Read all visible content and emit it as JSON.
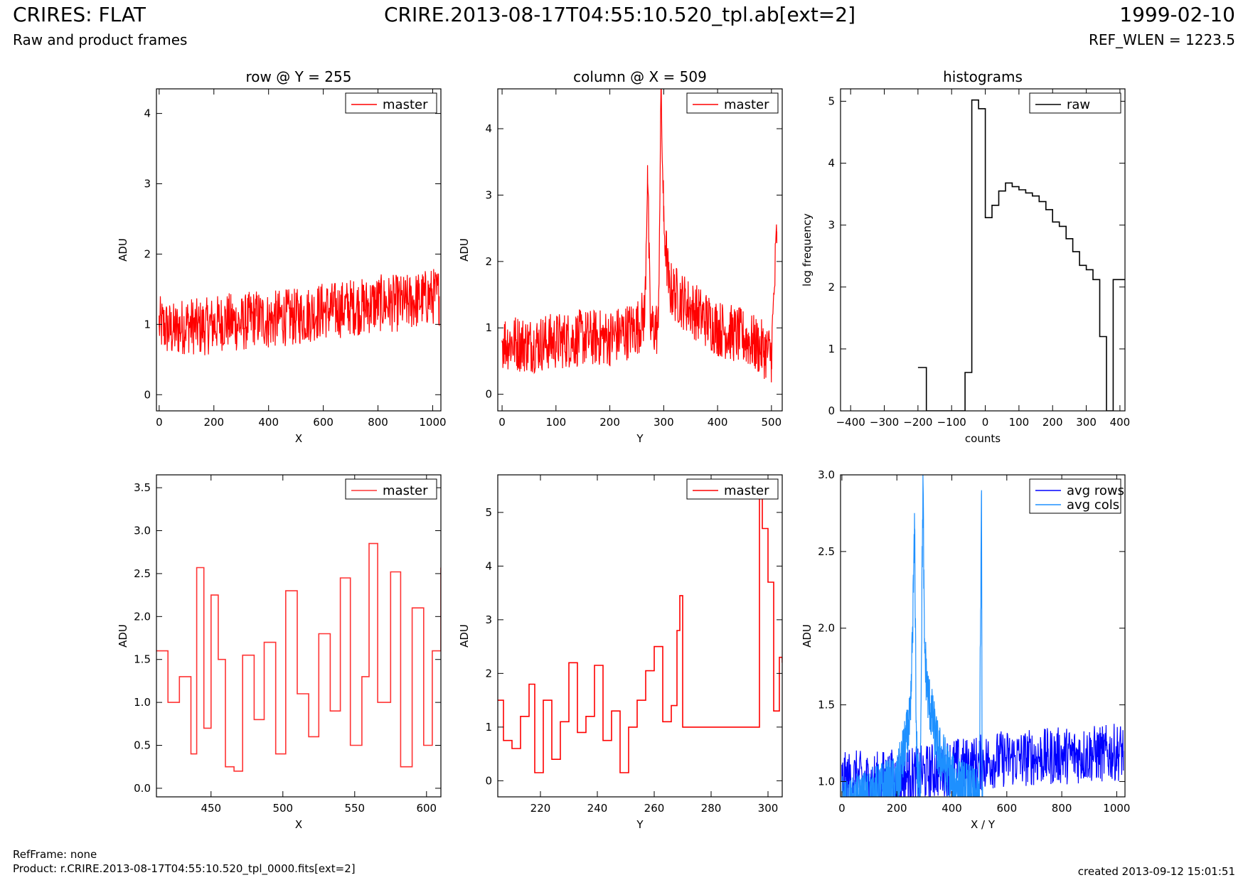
{
  "header": {
    "title": "CRIRES: FLAT",
    "subtitle": "Raw and product frames",
    "file": "CRIRE.2013-08-17T04:55:10.520_tpl.ab[ext=2]",
    "date": "1999-02-10",
    "ref_wlen": "REF_WLEN = 1223.5"
  },
  "footer": {
    "ref_frame": "RefFrame: none",
    "product": "Product: r.CRIRE.2013-08-17T04:55:10.520_tpl_0000.fits[ext=2]",
    "created": "created 2013-09-12 15:01:51"
  },
  "colors": {
    "master": "#ff0000",
    "raw": "#000000",
    "avg_rows": "#0000ff",
    "avg_cols": "#1e90ff"
  },
  "chart_data": [
    {
      "id": "p1",
      "type": "line",
      "title": "row @ Y = 255",
      "xlabel": "X",
      "ylabel": "ADU",
      "xlim": [
        -10,
        1030
      ],
      "ylim": [
        -0.23,
        4.35
      ],
      "xticks": [
        0,
        200,
        400,
        600,
        800,
        1000
      ],
      "yticks": [
        0,
        1,
        2,
        3,
        4
      ],
      "legend": "top-right",
      "series": [
        {
          "name": "master",
          "color": "#ff0000",
          "style": "line",
          "x": [
            0,
            50,
            100,
            150,
            200,
            250,
            300,
            350,
            400,
            450,
            500,
            550,
            600,
            650,
            700,
            750,
            800,
            850,
            900,
            950,
            1000,
            1024
          ],
          "y": [
            1.0,
            0.9,
            1.0,
            0.95,
            1.0,
            1.05,
            1.0,
            1.1,
            1.05,
            1.1,
            1.1,
            1.15,
            1.2,
            1.2,
            1.25,
            1.25,
            1.3,
            1.3,
            1.3,
            1.35,
            1.4,
            1.4
          ]
        }
      ]
    },
    {
      "id": "p2",
      "type": "line",
      "title": "column @ X = 509",
      "xlabel": "Y",
      "ylabel": "ADU",
      "xlim": [
        -8,
        520
      ],
      "ylim": [
        -0.25,
        4.6
      ],
      "xticks": [
        0,
        100,
        200,
        300,
        400,
        500
      ],
      "yticks": [
        0,
        1,
        2,
        3,
        4
      ],
      "legend": "top-right",
      "series": [
        {
          "name": "master",
          "color": "#ff0000",
          "style": "line",
          "x": [
            0,
            50,
            100,
            150,
            200,
            250,
            265,
            270,
            275,
            290,
            295,
            300,
            310,
            350,
            400,
            450,
            500,
            510
          ],
          "y": [
            0.8,
            0.75,
            0.8,
            0.85,
            0.85,
            1.0,
            1.2,
            3.45,
            1.0,
            1.0,
            4.6,
            2.6,
            1.6,
            1.3,
            1.0,
            0.85,
            0.6,
            2.45
          ]
        }
      ]
    },
    {
      "id": "p3",
      "type": "line",
      "title": "histograms",
      "xlabel": "counts",
      "ylabel": "log frequency",
      "xlim": [
        -430,
        415
      ],
      "ylim": [
        0,
        5.2
      ],
      "xticks": [
        -400,
        -300,
        -200,
        -100,
        0,
        100,
        200,
        300,
        400
      ],
      "yticks": [
        0,
        1,
        2,
        3,
        4,
        5
      ],
      "legend": "top-right",
      "series": [
        {
          "name": "raw",
          "color": "#000000",
          "style": "step",
          "x": [
            -200,
            -175,
            -175,
            -150,
            -60,
            -40,
            -20,
            0,
            20,
            40,
            60,
            80,
            100,
            120,
            140,
            160,
            180,
            200,
            220,
            240,
            260,
            280,
            300,
            320,
            340,
            360,
            380,
            395,
            415
          ],
          "y": [
            0.7,
            0.7,
            0,
            0,
            0.62,
            5.02,
            4.88,
            3.12,
            3.32,
            3.55,
            3.68,
            3.62,
            3.57,
            3.52,
            3.47,
            3.38,
            3.25,
            3.05,
            2.98,
            2.78,
            2.57,
            2.35,
            2.28,
            2.12,
            1.2,
            0,
            2.12,
            2.12,
            2.12
          ]
        }
      ]
    },
    {
      "id": "p4",
      "type": "line",
      "xlabel": "X",
      "ylabel": "ADU",
      "xlim": [
        412,
        610
      ],
      "ylim": [
        -0.1,
        3.65
      ],
      "xticks": [
        450,
        500,
        550,
        600
      ],
      "yticks": [
        0.0,
        0.5,
        1.0,
        1.5,
        2.0,
        2.5,
        3.0,
        3.5
      ],
      "legend": "top-right",
      "series": [
        {
          "name": "master",
          "color": "#ff3333",
          "style": "step",
          "x": [
            412,
            420,
            428,
            436,
            440,
            445,
            450,
            455,
            460,
            466,
            472,
            480,
            487,
            495,
            502,
            510,
            518,
            525,
            533,
            540,
            547,
            555,
            560,
            566,
            575,
            582,
            590,
            598,
            604,
            610
          ],
          "y": [
            1.6,
            1.0,
            1.3,
            0.4,
            2.57,
            0.7,
            2.25,
            1.5,
            0.25,
            0.2,
            1.55,
            0.8,
            1.7,
            0.4,
            2.3,
            1.1,
            0.6,
            1.8,
            0.9,
            2.45,
            0.5,
            1.3,
            2.85,
            1.0,
            2.52,
            0.25,
            2.1,
            0.5,
            1.6,
            2.57
          ]
        }
      ]
    },
    {
      "id": "p5",
      "type": "line",
      "xlabel": "Y",
      "ylabel": "ADU",
      "xlim": [
        205,
        305
      ],
      "ylim": [
        -0.3,
        5.7
      ],
      "xticks": [
        220,
        240,
        260,
        280,
        300
      ],
      "yticks": [
        0,
        1,
        2,
        3,
        4,
        5
      ],
      "legend": "top-right",
      "series": [
        {
          "name": "master",
          "color": "#ff0000",
          "style": "step",
          "x": [
            205,
            207,
            210,
            213,
            216,
            218,
            221,
            224,
            227,
            230,
            233,
            236,
            239,
            242,
            245,
            248,
            251,
            254,
            257,
            260,
            263,
            266,
            268,
            269,
            270,
            296,
            297,
            298,
            300,
            302,
            304,
            305
          ],
          "y": [
            1.5,
            0.75,
            0.6,
            1.2,
            1.8,
            0.15,
            1.5,
            0.4,
            1.1,
            2.2,
            0.9,
            1.2,
            2.15,
            0.75,
            1.3,
            0.15,
            1.0,
            1.5,
            2.05,
            2.5,
            1.1,
            1.4,
            2.8,
            3.45,
            1.0,
            1.0,
            5.6,
            4.7,
            3.7,
            1.3,
            2.3,
            2.2
          ]
        }
      ]
    },
    {
      "id": "p6",
      "type": "line",
      "xlabel": "X / Y",
      "ylabel": "ADU",
      "xlim": [
        -5,
        1030
      ],
      "ylim": [
        0.9,
        3.0
      ],
      "xticks": [
        0,
        200,
        400,
        600,
        800,
        1000
      ],
      "yticks": [
        1.0,
        1.5,
        2.0,
        2.5,
        3.0
      ],
      "legend": "top-right",
      "series": [
        {
          "name": "avg rows",
          "color": "#0000ff",
          "style": "line",
          "x": [
            0,
            50,
            100,
            150,
            200,
            250,
            300,
            350,
            400,
            450,
            500,
            550,
            600,
            650,
            700,
            750,
            800,
            850,
            900,
            950,
            1000,
            1024
          ],
          "y": [
            1.0,
            1.02,
            1.0,
            1.02,
            1.03,
            1.04,
            1.05,
            1.08,
            1.1,
            1.1,
            1.12,
            1.14,
            1.15,
            1.15,
            1.16,
            1.16,
            1.17,
            1.17,
            1.18,
            1.18,
            1.19,
            1.2
          ]
        },
        {
          "name": "avg cols",
          "color": "#1e90ff",
          "style": "line",
          "x": [
            0,
            20,
            50,
            100,
            150,
            200,
            250,
            265,
            270,
            275,
            285,
            295,
            300,
            310,
            330,
            350,
            380,
            400,
            450,
            500,
            508,
            510,
            512
          ],
          "y": [
            0.85,
            0.82,
            0.86,
            0.9,
            0.95,
            0.98,
            1.4,
            2.65,
            1.4,
            1.0,
            1.0,
            3.0,
            1.9,
            1.6,
            1.4,
            1.2,
            1.1,
            1.0,
            0.95,
            0.88,
            2.9,
            0.9,
            0.9
          ]
        }
      ]
    }
  ]
}
